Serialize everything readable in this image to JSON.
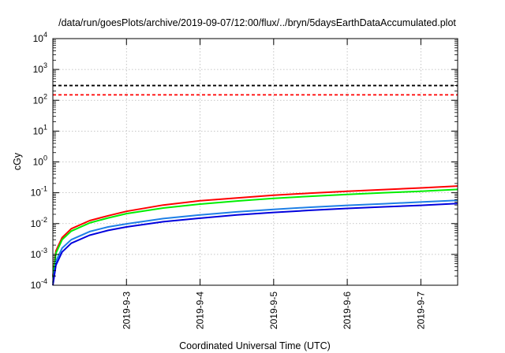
{
  "chart_data": {
    "type": "line",
    "title": "/data/run/goesPlots/archive/2019-09-07/12:00/flux/../bryn/5daysEarthDataAccumulated.plot",
    "xlabel": "Coordinated Universal Time (UTC)",
    "ylabel": "cGy",
    "yscale": "log",
    "ylim": [
      0.0001,
      10000
    ],
    "xlim": [
      "2019-09-02 00:00",
      "2019-09-07 12:00"
    ],
    "grid": true,
    "x_ticks": [
      "2019-9-3",
      "2019-9-4",
      "2019-9-5",
      "2019-9-6",
      "2019-9-7"
    ],
    "y_ticks": [
      {
        "value": 0.0001,
        "base": "10",
        "exp": "-4"
      },
      {
        "value": 0.001,
        "base": "10",
        "exp": "-3"
      },
      {
        "value": 0.01,
        "base": "10",
        "exp": "-2"
      },
      {
        "value": 0.1,
        "base": "10",
        "exp": "-1"
      },
      {
        "value": 1,
        "base": "10",
        "exp": "0"
      },
      {
        "value": 10,
        "base": "10",
        "exp": "1"
      },
      {
        "value": 100,
        "base": "10",
        "exp": "2"
      },
      {
        "value": 1000,
        "base": "10",
        "exp": "3"
      },
      {
        "value": 10000,
        "base": "10",
        "exp": "4"
      }
    ],
    "reference_lines": [
      {
        "value": 300,
        "color": "#000000",
        "style": "dashed"
      },
      {
        "value": 150,
        "color": "#ff0000",
        "style": "dashed"
      }
    ],
    "series": [
      {
        "color": "#ff0000",
        "x": [
          "2019-09-02 00:00",
          "2019-09-02 01:00",
          "2019-09-02 03:00",
          "2019-09-02 06:00",
          "2019-09-02 12:00",
          "2019-09-02 18:00",
          "2019-09-03 00:00",
          "2019-09-03 12:00",
          "2019-09-04 00:00",
          "2019-09-04 12:00",
          "2019-09-05 00:00",
          "2019-09-05 12:00",
          "2019-09-06 00:00",
          "2019-09-06 12:00",
          "2019-09-07 00:00",
          "2019-09-07 12:00"
        ],
        "values": [
          0.0002,
          0.0013,
          0.0035,
          0.0068,
          0.0125,
          0.018,
          0.025,
          0.04,
          0.055,
          0.068,
          0.083,
          0.097,
          0.112,
          0.127,
          0.143,
          0.165
        ]
      },
      {
        "color": "#00ee00",
        "x": [
          "2019-09-02 00:00",
          "2019-09-02 01:00",
          "2019-09-02 03:00",
          "2019-09-02 06:00",
          "2019-09-02 12:00",
          "2019-09-02 18:00",
          "2019-09-03 00:00",
          "2019-09-03 12:00",
          "2019-09-04 00:00",
          "2019-09-04 12:00",
          "2019-09-05 00:00",
          "2019-09-05 12:00",
          "2019-09-06 00:00",
          "2019-09-06 12:00",
          "2019-09-07 00:00",
          "2019-09-07 12:00"
        ],
        "values": [
          0.00018,
          0.0011,
          0.003,
          0.0057,
          0.0105,
          0.0152,
          0.021,
          0.032,
          0.043,
          0.054,
          0.066,
          0.077,
          0.088,
          0.1,
          0.112,
          0.128
        ]
      },
      {
        "color": "#1e7fe6",
        "x": [
          "2019-09-02 00:00",
          "2019-09-02 01:00",
          "2019-09-02 03:00",
          "2019-09-02 06:00",
          "2019-09-02 12:00",
          "2019-09-02 18:00",
          "2019-09-03 00:00",
          "2019-09-03 12:00",
          "2019-09-04 00:00",
          "2019-09-04 12:00",
          "2019-09-05 00:00",
          "2019-09-05 12:00",
          "2019-09-06 00:00",
          "2019-09-06 12:00",
          "2019-09-07 00:00",
          "2019-09-07 12:00"
        ],
        "values": [
          0.00012,
          0.0006,
          0.0016,
          0.003,
          0.0055,
          0.0078,
          0.0098,
          0.0145,
          0.019,
          0.024,
          0.029,
          0.034,
          0.039,
          0.044,
          0.05,
          0.057
        ]
      },
      {
        "color": "#0000dd",
        "x": [
          "2019-09-02 00:00",
          "2019-09-02 01:00",
          "2019-09-02 03:00",
          "2019-09-02 06:00",
          "2019-09-02 12:00",
          "2019-09-02 18:00",
          "2019-09-03 00:00",
          "2019-09-03 12:00",
          "2019-09-04 00:00",
          "2019-09-04 12:00",
          "2019-09-05 00:00",
          "2019-09-05 12:00",
          "2019-09-06 00:00",
          "2019-09-06 12:00",
          "2019-09-07 00:00",
          "2019-09-07 12:00"
        ],
        "values": [
          0.0001,
          0.00045,
          0.0012,
          0.0023,
          0.0042,
          0.006,
          0.0078,
          0.0115,
          0.015,
          0.019,
          0.023,
          0.027,
          0.031,
          0.035,
          0.039,
          0.045
        ]
      }
    ]
  }
}
